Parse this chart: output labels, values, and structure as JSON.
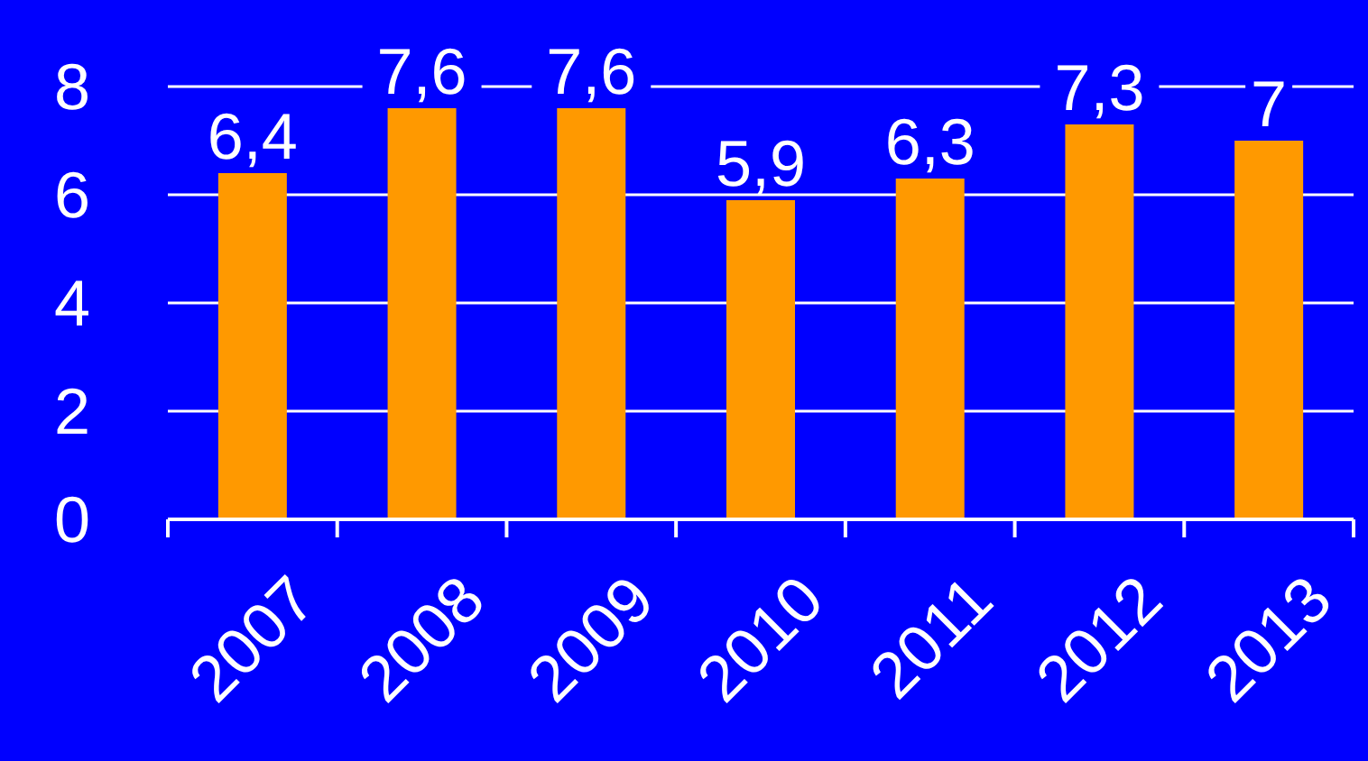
{
  "chart_data": {
    "type": "bar",
    "categories": [
      "2007",
      "2008",
      "2009",
      "2010",
      "2011",
      "2012",
      "2013"
    ],
    "values": [
      6.4,
      7.6,
      7.6,
      5.9,
      6.3,
      7.3,
      7
    ],
    "value_labels": [
      "6,4",
      "7,6",
      "7,6",
      "5,9",
      "6,3",
      "7,3",
      "7"
    ],
    "color": "#ff9900",
    "ylim": [
      0,
      8
    ],
    "yticks": [
      0,
      2,
      4,
      6,
      8
    ],
    "grid": "y"
  }
}
